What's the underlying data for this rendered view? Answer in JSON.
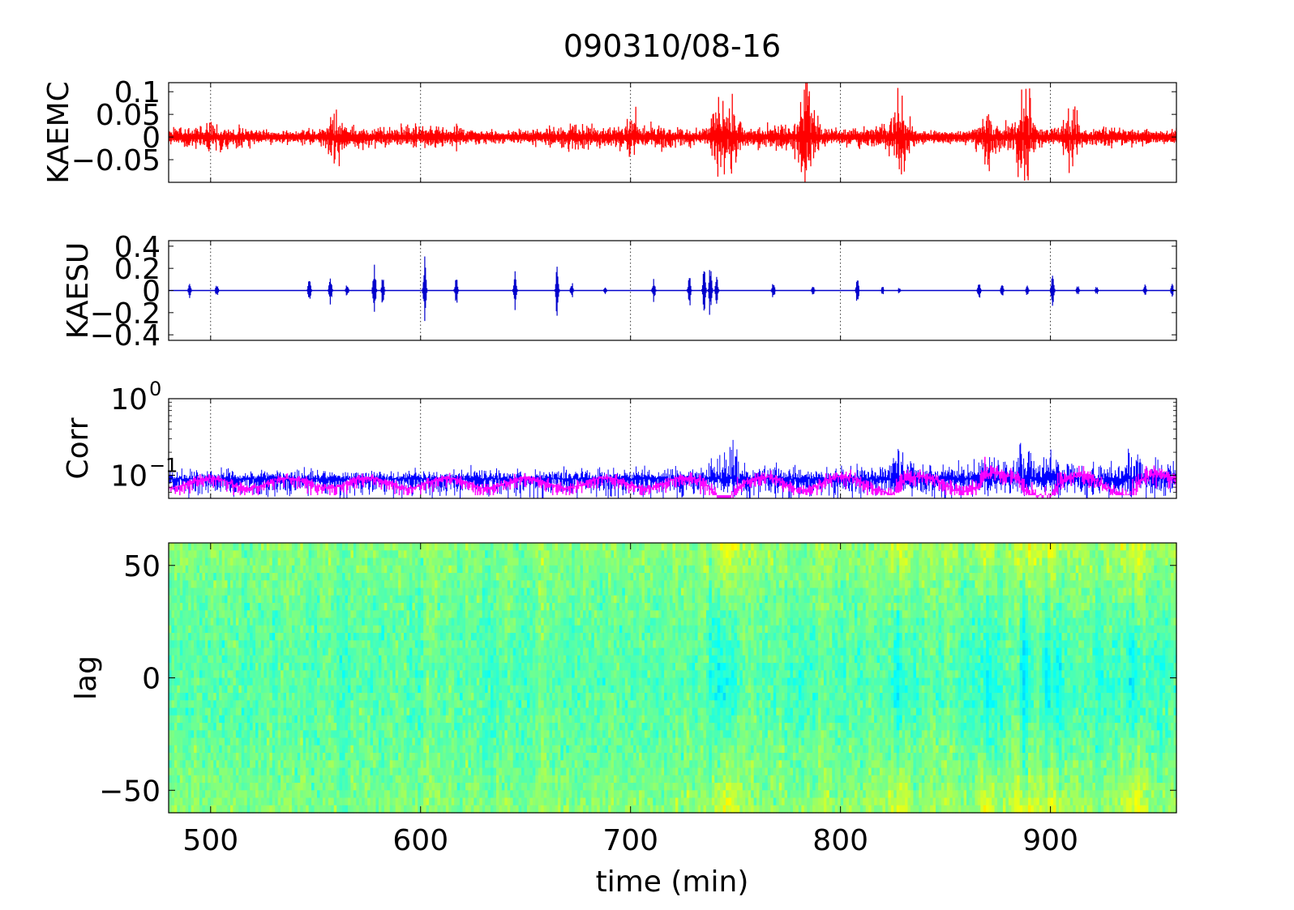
{
  "figure": {
    "title": "090310/08-16"
  },
  "chart_data": [
    {
      "name": "kaemc",
      "type": "line",
      "ylabel": "KAEMC",
      "xlim": [
        480,
        960
      ],
      "ylim": [
        -0.1,
        0.12
      ],
      "yticks": [
        {
          "v": 0.1,
          "label": "0.1"
        },
        {
          "v": 0.05,
          "label": "0.05"
        },
        {
          "v": 0,
          "label": "0"
        },
        {
          "v": -0.05,
          "label": "−0.05"
        }
      ],
      "series": [
        {
          "color": "#ff0000",
          "base_amplitude": 0.02
        }
      ],
      "bursts": [
        {
          "x": 560,
          "amp": 0.04
        },
        {
          "x": 700,
          "amp": 0.035
        },
        {
          "x": 742,
          "amp": 0.08
        },
        {
          "x": 748,
          "amp": 0.06
        },
        {
          "x": 784,
          "amp": 0.1
        },
        {
          "x": 828,
          "amp": 0.09
        },
        {
          "x": 870,
          "amp": 0.04
        },
        {
          "x": 888,
          "amp": 0.1
        },
        {
          "x": 910,
          "amp": 0.05
        }
      ],
      "grid": "x-dotted"
    },
    {
      "name": "kaesu",
      "type": "line",
      "ylabel": "KAESU",
      "xlim": [
        480,
        960
      ],
      "ylim": [
        -0.45,
        0.45
      ],
      "yticks": [
        {
          "v": 0.4,
          "label": "0.4"
        },
        {
          "v": 0.2,
          "label": "0.2"
        },
        {
          "v": 0,
          "label": "0"
        },
        {
          "v": -0.2,
          "label": "−0.2"
        },
        {
          "v": -0.4,
          "label": "−0.4"
        }
      ],
      "series": [
        {
          "color": "#0000cc"
        }
      ],
      "spikes": [
        {
          "x": 490,
          "amp": 0.08
        },
        {
          "x": 503,
          "amp": 0.06
        },
        {
          "x": 547,
          "amp": 0.12
        },
        {
          "x": 557,
          "amp": 0.13
        },
        {
          "x": 565,
          "amp": 0.06
        },
        {
          "x": 578,
          "amp": 0.25
        },
        {
          "x": 582,
          "amp": 0.12
        },
        {
          "x": 602,
          "amp": 0.28
        },
        {
          "x": 617,
          "amp": 0.15
        },
        {
          "x": 645,
          "amp": 0.18
        },
        {
          "x": 665,
          "amp": 0.2
        },
        {
          "x": 672,
          "amp": 0.08
        },
        {
          "x": 688,
          "amp": 0.03
        },
        {
          "x": 711,
          "amp": 0.1
        },
        {
          "x": 728,
          "amp": 0.15
        },
        {
          "x": 735,
          "amp": 0.2
        },
        {
          "x": 738,
          "amp": 0.24
        },
        {
          "x": 741,
          "amp": 0.12
        },
        {
          "x": 768,
          "amp": 0.08
        },
        {
          "x": 787,
          "amp": 0.05
        },
        {
          "x": 808,
          "amp": 0.12
        },
        {
          "x": 820,
          "amp": 0.04
        },
        {
          "x": 828,
          "amp": 0.03
        },
        {
          "x": 866,
          "amp": 0.08
        },
        {
          "x": 877,
          "amp": 0.06
        },
        {
          "x": 889,
          "amp": 0.04
        },
        {
          "x": 901,
          "amp": 0.15
        },
        {
          "x": 913,
          "amp": 0.05
        },
        {
          "x": 922,
          "amp": 0.04
        },
        {
          "x": 945,
          "amp": 0.05
        },
        {
          "x": 958,
          "amp": 0.06
        }
      ],
      "grid": "x-dotted"
    },
    {
      "name": "corr",
      "type": "line",
      "ylabel": "Corr",
      "yscale": "log",
      "xlim": [
        480,
        960
      ],
      "ylim": [
        0.05,
        1.0
      ],
      "yticks": [
        {
          "v": 1.0,
          "base": "10",
          "exp": "0"
        },
        {
          "v": 0.1,
          "base": "10",
          "exp": "−1"
        }
      ],
      "series": [
        {
          "color": "#0000ff",
          "level": 0.09
        },
        {
          "color": "#ff00ff",
          "level": 0.08
        }
      ],
      "grid": "x-dotted"
    },
    {
      "name": "lag",
      "type": "heatmap",
      "ylabel": "lag",
      "xlabel": "time (min)",
      "xlim": [
        480,
        960
      ],
      "ylim": [
        -60,
        60
      ],
      "xticks": [
        {
          "v": 500,
          "label": "500"
        },
        {
          "v": 600,
          "label": "600"
        },
        {
          "v": 700,
          "label": "700"
        },
        {
          "v": 800,
          "label": "800"
        },
        {
          "v": 900,
          "label": "900"
        }
      ],
      "yticks": [
        {
          "v": 50,
          "label": "50"
        },
        {
          "v": 0,
          "label": "0"
        },
        {
          "v": -50,
          "label": "−50"
        }
      ],
      "colormap": [
        "#0000ff",
        "#00ffff",
        "#ffff00",
        "#ff0000"
      ],
      "hot_columns": [
        742,
        748,
        828,
        870,
        888,
        900,
        940
      ]
    }
  ]
}
